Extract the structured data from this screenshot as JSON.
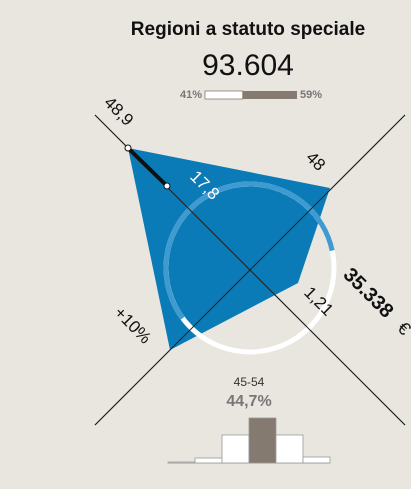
{
  "header": {
    "title": "Regioni a statuto speciale",
    "value": "93.604"
  },
  "split": [
    {
      "value": 41,
      "label": "41%"
    },
    {
      "value": 59,
      "label": "59%"
    }
  ],
  "labels": {
    "top_left": "48,9",
    "top_right": "48",
    "inner": "17,8",
    "bottom_right": "1,21",
    "bottom_left": "+10%",
    "side_value": "35.338",
    "side_unit": "€"
  },
  "histogram": {
    "range": "45-54",
    "share": "44,7%",
    "values": [
      1,
      5,
      28,
      45,
      28,
      6
    ],
    "highlight": 3
  }
}
